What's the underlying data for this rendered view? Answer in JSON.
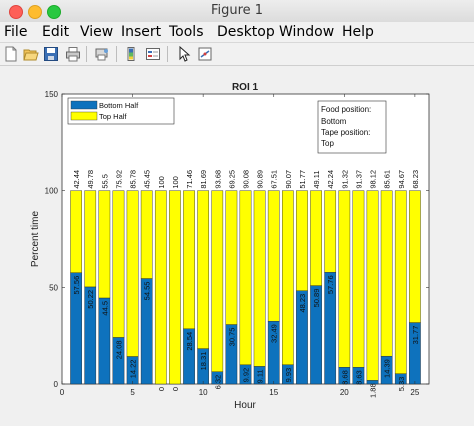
{
  "window": {
    "title": "Figure 1"
  },
  "menubar": {
    "items": [
      "File",
      "Edit",
      "View",
      "Insert",
      "Tools",
      "Desktop",
      "Window",
      "Help"
    ]
  },
  "toolbar": {
    "icons": [
      "new-figure-icon",
      "open-file-icon",
      "save-icon",
      "print-icon",
      "print-preview-icon",
      "insert-colorbar-icon",
      "insert-legend-icon",
      "pointer-icon",
      "data-tips-icon"
    ]
  },
  "colors": {
    "bottom": "#0e72bd",
    "top": "#ffff00"
  },
  "chart_data": {
    "type": "bar",
    "stacked": true,
    "title": "ROI 1",
    "xlabel": "Hour",
    "ylabel": "Percent time",
    "xlim": [
      0,
      26
    ],
    "ylim": [
      0,
      150
    ],
    "xticks": [
      "0",
      "5",
      "10",
      "15",
      "20",
      "25"
    ],
    "yticks": [
      "0",
      "50",
      "100",
      "150"
    ],
    "x": [
      1,
      2,
      3,
      4,
      5,
      6,
      7,
      8,
      9,
      10,
      11,
      12,
      13,
      14,
      15,
      16,
      17,
      18,
      19,
      20,
      21,
      22,
      23,
      24,
      25
    ],
    "series": [
      {
        "name": "Bottom Half",
        "values": [
          57.56,
          50.22,
          44.5,
          24.08,
          14.22,
          54.55,
          0,
          0,
          28.54,
          18.31,
          6.32,
          30.75,
          9.92,
          9.11,
          32.49,
          9.93,
          48.23,
          50.89,
          57.76,
          8.68,
          8.63,
          1.88,
          14.39,
          5.33,
          31.77
        ],
        "labels": [
          "57.56",
          "50.22",
          "44.5",
          "24.08",
          "14.22",
          "54.55",
          "0",
          "0",
          "28.54",
          "18.31",
          "6.32",
          "30.75",
          "9.92",
          "9.11",
          "32.49",
          "9.93",
          "48.23",
          "50.89",
          "57.76",
          "8.68",
          "8.63",
          "1.88",
          "14.39",
          "5.33",
          "31.77"
        ]
      },
      {
        "name": "Top Half",
        "values": [
          42.44,
          49.78,
          55.5,
          75.92,
          85.78,
          45.45,
          100,
          100,
          71.46,
          81.69,
          93.68,
          69.25,
          90.08,
          90.89,
          67.51,
          90.07,
          51.77,
          49.11,
          42.24,
          91.32,
          91.37,
          98.12,
          85.61,
          94.67,
          68.23
        ],
        "labels": [
          "42.44",
          "49.78",
          "55.5",
          "75.92",
          "85.78",
          "45.45",
          "100",
          "100",
          "71.46",
          "81.69",
          "93.68",
          "69.25",
          "90.08",
          "90.89",
          "67.51",
          "90.07",
          "51.77",
          "49.11",
          "42.24",
          "91.32",
          "91.37",
          "98.12",
          "85.61",
          "94.67",
          "68.23"
        ]
      }
    ],
    "legend": {
      "placement": "top-left",
      "entries": [
        "Bottom Half",
        "Top Half"
      ]
    },
    "annotation": {
      "lines": [
        "Food position:",
        "Bottom",
        "Tape position:",
        "Top"
      ],
      "placement": "top-right"
    },
    "grid": false
  }
}
